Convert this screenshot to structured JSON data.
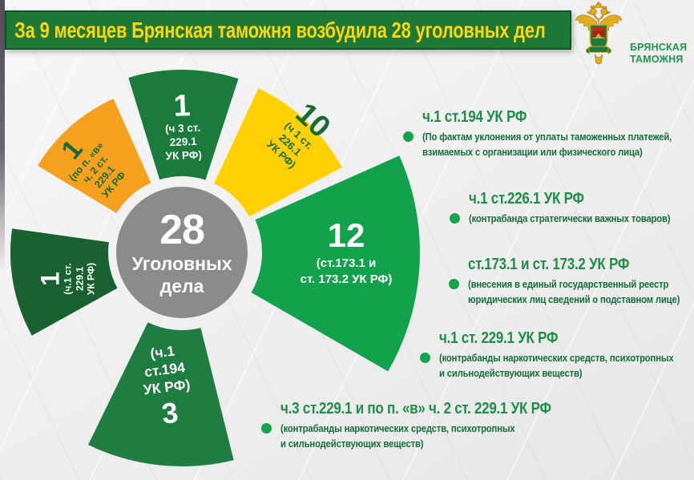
{
  "header": {
    "title": "За 9 месяцев Брянская таможня возбудила 28 уголовных дел",
    "bar_color": "#1e7936",
    "text_color": "#ffd60a"
  },
  "logo": {
    "org_line1": "БРЯНСКАЯ",
    "org_line2": "ТАМОЖНЯ"
  },
  "chart_data": {
    "type": "pie",
    "title": "За 9 месяцев Брянская таможня возбудила 28 уголовных дел",
    "total": 28,
    "center_value": "28",
    "center_label_lines": [
      "Уголовных",
      "дела"
    ],
    "center_color": "#8b8b8b",
    "legend_position": "right",
    "segments": [
      {
        "id": "p-v-ch2-st229-1",
        "value": 1,
        "label": "(по п. «в» ч. 2 ст. 229.1 УК РФ",
        "label_lines": [
          "(по п. «в»",
          "ч. 2 ст.",
          "229.1",
          "УК РФ"
        ],
        "color": "#f5a11f",
        "text_color": "#176b33"
      },
      {
        "id": "ch3-st229-1",
        "value": 1,
        "label": "(ч 3 ст. 229.1 УК РФ)",
        "label_lines": [
          "(ч 3 ст.",
          "229.1",
          "УК РФ)"
        ],
        "color": "#1b7b3c",
        "text_color": "#ffffff"
      },
      {
        "id": "ch1-st226-1",
        "value": 10,
        "label": "(ч 1 ст. 226.1 УК РФ)",
        "label_lines": [
          "(ч 1 ст.",
          "226.1",
          "УК РФ)"
        ],
        "color": "#ffd103",
        "text_color": "#176b33"
      },
      {
        "id": "st173-1-173-2",
        "value": 12,
        "label": "(ст.173.1 и ст. 173.2 УК РФ)",
        "label_lines": [
          "(ст.173.1 и",
          "ст. 173.2 УК РФ)"
        ],
        "color": "#12a24c",
        "text_color": "#ffffff"
      },
      {
        "id": "ch1-st194",
        "value": 3,
        "label": "(ч.1 ст.194 УК РФ)",
        "label_lines": [
          "(ч.1",
          "ст.194",
          "УК РФ)"
        ],
        "color": "#1f7d42",
        "text_color": "#ffffff"
      },
      {
        "id": "ch1-st229-1",
        "value": 1,
        "label": "(ч.1 ст. 229.1 УК РФ)",
        "label_lines": [
          "(ч.1 ст.",
          "229.1",
          "УК РФ)"
        ],
        "color": "#1a6130",
        "text_color": "#ffffff"
      }
    ]
  },
  "legend": {
    "bullet_color": "#15a34d",
    "items": [
      {
        "title": "ч.1 ст.194 УК РФ",
        "desc_lines": [
          "(По фактам уклонения от уплаты таможенных платежей,",
          "взимаемых с организации или физического лица)"
        ]
      },
      {
        "title": "ч.1 ст.226.1 УК РФ",
        "desc_lines": [
          "(контрабанда стратегически важных товаров)"
        ]
      },
      {
        "title": "ст.173.1 и ст. 173.2 УК РФ",
        "desc_lines": [
          "(внесения в единый государственный реестр",
          "юридических лиц сведений о подставном лице)"
        ]
      },
      {
        "title": "ч.1 ст. 229.1 УК РФ",
        "desc_lines": [
          "(контрабанды наркотических средств, психотропных",
          "и сильнодействующих веществ)"
        ]
      },
      {
        "title": "ч.3 ст.229.1 и по п. «в» ч. 2 ст. 229.1 УК РФ",
        "desc_lines": [
          "(контрабанды наркотических средств, психотропных",
          "и сильнодействующих веществ)"
        ]
      }
    ]
  }
}
